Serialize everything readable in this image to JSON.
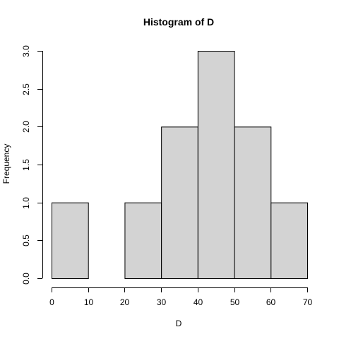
{
  "chart_data": {
    "type": "bar",
    "title": "Histogram of D",
    "xlabel": "D",
    "ylabel": "Frequency",
    "bins": [
      {
        "from": 0,
        "to": 10,
        "count": 1
      },
      {
        "from": 10,
        "to": 20,
        "count": 0
      },
      {
        "from": 20,
        "to": 30,
        "count": 1
      },
      {
        "from": 30,
        "to": 40,
        "count": 2
      },
      {
        "from": 40,
        "to": 50,
        "count": 3
      },
      {
        "from": 50,
        "to": 60,
        "count": 2
      },
      {
        "from": 60,
        "to": 70,
        "count": 1
      }
    ],
    "xlim": [
      0,
      70
    ],
    "ylim": [
      0,
      3
    ],
    "x_ticks": [
      "0",
      "10",
      "20",
      "30",
      "40",
      "50",
      "60",
      "70"
    ],
    "y_ticks": [
      "0.0",
      "0.5",
      "1.0",
      "1.5",
      "2.0",
      "2.5",
      "3.0"
    ],
    "bar_fill": "#d3d3d3",
    "bar_stroke": "#000000",
    "grid": false
  }
}
